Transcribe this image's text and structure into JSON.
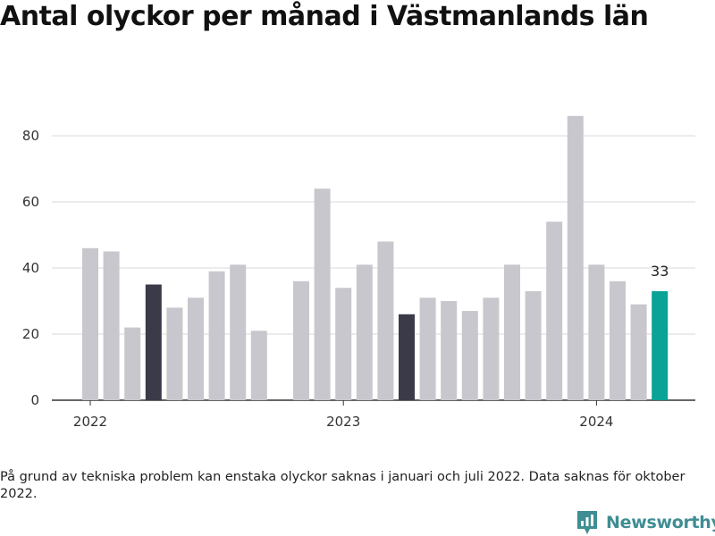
{
  "title": "Antal olyckor per månad i Västmanlands län",
  "footnote": "På grund av tekniska problem kan enstaka olyckor saknas i januari och juli 2022. Data saknas för oktober 2022.",
  "brand": {
    "name": "Newsworthy",
    "logo_icon": "newsworthy-logo-icon",
    "color": "#3e8e93"
  },
  "colors": {
    "bar": "#c8c7cd",
    "highlight": "#3b3a48",
    "current": "#0aa396",
    "grid": "#d9d9d9",
    "axis": "#333333"
  },
  "chart_data": {
    "type": "bar",
    "title": "Antal olyckor per månad i Västmanlands län",
    "categories": [
      "2022-01",
      "2022-02",
      "2022-03",
      "2022-04",
      "2022-05",
      "2022-06",
      "2022-07",
      "2022-08",
      "2022-09",
      "2022-10",
      "2022-11",
      "2022-12",
      "2023-01",
      "2023-02",
      "2023-03",
      "2023-04",
      "2023-05",
      "2023-06",
      "2023-07",
      "2023-08",
      "2023-09",
      "2023-10",
      "2023-11",
      "2023-12",
      "2024-01",
      "2024-02",
      "2024-03",
      "2024-04"
    ],
    "values": [
      46,
      45,
      22,
      35,
      28,
      31,
      39,
      41,
      21,
      null,
      36,
      64,
      34,
      41,
      48,
      26,
      31,
      30,
      27,
      31,
      41,
      33,
      54,
      86,
      41,
      36,
      29,
      33
    ],
    "highlighted": [
      "2022-04",
      "2023-04"
    ],
    "current": "2024-04",
    "value_label": {
      "category": "2024-04",
      "text": "33"
    },
    "x_tick_labels": [
      {
        "category": "2022-01",
        "label": "2022"
      },
      {
        "category": "2023-01",
        "label": "2023"
      },
      {
        "category": "2024-01",
        "label": "2024"
      }
    ],
    "y_ticks": [
      0,
      20,
      40,
      60,
      80
    ],
    "ylim": [
      0,
      88
    ],
    "xlabel": "",
    "ylabel": "",
    "grid": true
  }
}
